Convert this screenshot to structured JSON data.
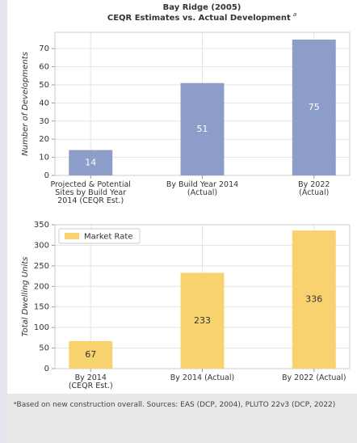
{
  "chart_data": [
    {
      "type": "bar",
      "title": "Bay Ridge (2005)",
      "subtitle": "CEQR Estimates vs. Actual Development",
      "subtitle_marker": "a",
      "categories": [
        "Projected & Potential\nSites by Build Year\n2014 (CEQR Est.)",
        "By Build Year 2014\n(Actual)",
        "By 2022\n(Actual)"
      ],
      "values": [
        14,
        51,
        75
      ],
      "color": "#8b9dc8",
      "label_color": "#ffffff",
      "ylabel": "Number of Developments",
      "ylim": [
        0,
        79
      ],
      "yticks": [
        0,
        10,
        20,
        30,
        40,
        50,
        60,
        70
      ],
      "grid": true
    },
    {
      "type": "bar",
      "categories": [
        "By 2014\n(CEQR Est.)",
        "By 2014 (Actual)",
        "By 2022 (Actual)"
      ],
      "series": [
        {
          "name": "Market Rate",
          "color": "#f7d26f",
          "values": [
            67,
            233,
            336
          ]
        }
      ],
      "label_color": "#333333",
      "ylabel": "Total Dwelling Units",
      "ylim": [
        0,
        350
      ],
      "yticks": [
        0,
        50,
        100,
        150,
        200,
        250,
        300,
        350
      ],
      "grid": true,
      "legend": "upper left"
    }
  ],
  "footnote": "ᵃBased on new construction overall. Sources: EAS (DCP, 2004), PLUTO 22v3 (DCP, 2022)"
}
